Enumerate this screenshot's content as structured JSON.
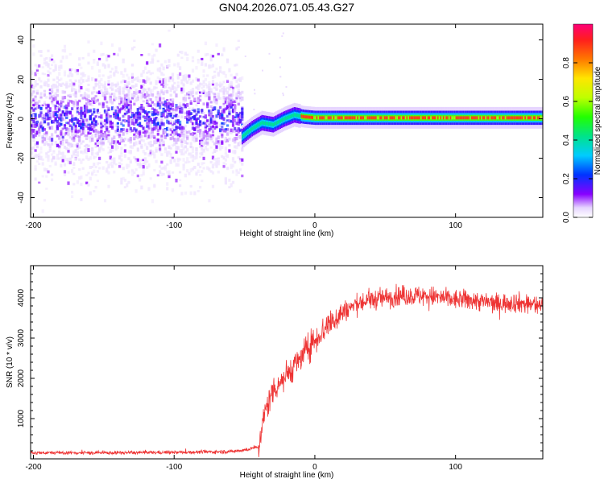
{
  "title": "GN04.2026.071.05.43.G27",
  "chart_data": [
    {
      "type": "heatmap",
      "xlabel": "Height of straight line (km)",
      "ylabel": "Frequency (Hz)",
      "xlim": [
        -202,
        162
      ],
      "ylim": [
        -50,
        48
      ],
      "xticks": [
        -200,
        -100,
        0,
        100
      ],
      "yticks": [
        -40,
        -20,
        0,
        20,
        40
      ],
      "colorbar": {
        "label": "Normalized spectral amplitude",
        "range": [
          0,
          1
        ],
        "ticks": [
          "0.0",
          "0.2",
          "0.4",
          "0.6",
          "0.8"
        ]
      },
      "description_points": {
        "noise_region_x": [
          -202,
          -52
        ],
        "noise_center_hz": 0,
        "noise_spread_hz": 48,
        "transition_x": [
          -52,
          -10
        ],
        "transition_freq_hz": [
          -10,
          2
        ],
        "stable_line_x": [
          -10,
          162
        ],
        "stable_line_freq_hz": 0.5
      },
      "trend": [
        {
          "x": -52,
          "y": -9
        },
        {
          "x": -45,
          "y": -5
        },
        {
          "x": -38,
          "y": -2
        },
        {
          "x": -30,
          "y": -3
        },
        {
          "x": -22,
          "y": 0
        },
        {
          "x": -15,
          "y": 2
        },
        {
          "x": -8,
          "y": 1
        },
        {
          "x": 0,
          "y": 0.5
        },
        {
          "x": 60,
          "y": 0.5
        },
        {
          "x": 162,
          "y": 0.5
        }
      ]
    },
    {
      "type": "line",
      "xlabel": "Height of straight line (km)",
      "ylabel": "SNR (10 * v/v)",
      "xlim": [
        -202,
        162
      ],
      "ylim": [
        0,
        4800
      ],
      "xticks": [
        -200,
        -100,
        0,
        100
      ],
      "yticks": [
        1000,
        2000,
        3000,
        4000
      ],
      "series": [
        {
          "name": "SNR",
          "color": "#ee3333",
          "points": [
            {
              "x": -202,
              "y": 150
            },
            {
              "x": -150,
              "y": 150
            },
            {
              "x": -100,
              "y": 160
            },
            {
              "x": -60,
              "y": 180
            },
            {
              "x": -48,
              "y": 230
            },
            {
              "x": -40,
              "y": 300
            },
            {
              "x": -38,
              "y": 700
            },
            {
              "x": -35,
              "y": 1200
            },
            {
              "x": -30,
              "y": 1700
            },
            {
              "x": -25,
              "y": 1900
            },
            {
              "x": -20,
              "y": 2100
            },
            {
              "x": -15,
              "y": 2300
            },
            {
              "x": -10,
              "y": 2500
            },
            {
              "x": -5,
              "y": 2750
            },
            {
              "x": 0,
              "y": 2950
            },
            {
              "x": 5,
              "y": 3150
            },
            {
              "x": 10,
              "y": 3350
            },
            {
              "x": 15,
              "y": 3500
            },
            {
              "x": 20,
              "y": 3650
            },
            {
              "x": 25,
              "y": 3750
            },
            {
              "x": 30,
              "y": 3850
            },
            {
              "x": 40,
              "y": 3950
            },
            {
              "x": 50,
              "y": 4000
            },
            {
              "x": 60,
              "y": 4050
            },
            {
              "x": 70,
              "y": 4050
            },
            {
              "x": 80,
              "y": 4050
            },
            {
              "x": 90,
              "y": 4000
            },
            {
              "x": 100,
              "y": 3950
            },
            {
              "x": 110,
              "y": 3950
            },
            {
              "x": 120,
              "y": 3900
            },
            {
              "x": 130,
              "y": 3850
            },
            {
              "x": 140,
              "y": 3900
            },
            {
              "x": 150,
              "y": 3850
            },
            {
              "x": 162,
              "y": 3800
            }
          ]
        }
      ]
    }
  ]
}
